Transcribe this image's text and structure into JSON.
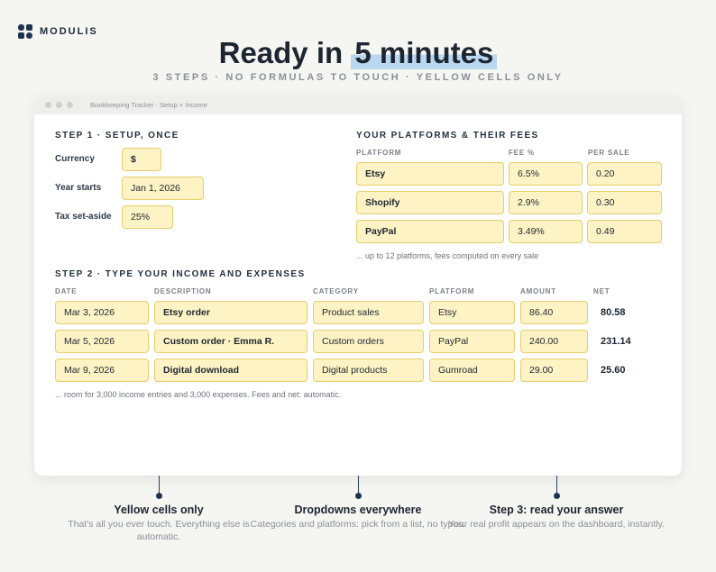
{
  "brand": {
    "name": "MODULIS"
  },
  "hero": {
    "title_pre": "Ready in ",
    "title_highlight": "5 minutes",
    "subtitle": "3 STEPS · NO FORMULAS TO TOUCH · YELLOW CELLS ONLY"
  },
  "window": {
    "title": "Bookkeeping Tracker · Setup + Income"
  },
  "setup": {
    "title": "STEP 1 · SETUP, ONCE",
    "rows": [
      {
        "label": "Currency",
        "value": "$"
      },
      {
        "label": "Year starts",
        "value": "Jan 1, 2026"
      },
      {
        "label": "Tax set-aside",
        "value": "25%"
      }
    ]
  },
  "platforms": {
    "title": "YOUR PLATFORMS & THEIR FEES",
    "headers": {
      "platform": "PLATFORM",
      "fee": "FEE %",
      "per_sale": "PER SALE"
    },
    "rows": [
      {
        "platform": "Etsy",
        "fee": "6.5%",
        "per_sale": "0.20"
      },
      {
        "platform": "Shopify",
        "fee": "2.9%",
        "per_sale": "0.30"
      },
      {
        "platform": "PayPal",
        "fee": "3.49%",
        "per_sale": "0.49"
      }
    ],
    "note": "... up to 12 platforms, fees computed on every sale"
  },
  "income": {
    "title": "STEP 2 · TYPE YOUR INCOME AND EXPENSES",
    "headers": {
      "date": "DATE",
      "description": "DESCRIPTION",
      "category": "CATEGORY",
      "platform": "PLATFORM",
      "amount": "AMOUNT",
      "net": "NET"
    },
    "rows": [
      {
        "date": "Mar 3, 2026",
        "description": "Etsy order",
        "category": "Product sales",
        "platform": "Etsy",
        "amount": "86.40",
        "net": "80.58"
      },
      {
        "date": "Mar 5, 2026",
        "description": "Custom order · Emma R.",
        "category": "Custom orders",
        "platform": "PayPal",
        "amount": "240.00",
        "net": "231.14"
      },
      {
        "date": "Mar 9, 2026",
        "description": "Digital download",
        "category": "Digital products",
        "platform": "Gumroad",
        "amount": "29.00",
        "net": "25.60"
      }
    ],
    "note": "... room for 3,000 income entries and 3,000 expenses. Fees and net: automatic."
  },
  "callouts": [
    {
      "title": "Yellow cells only",
      "desc": "That's all you ever touch. Everything else is automatic."
    },
    {
      "title": "Dropdowns everywhere",
      "desc": "Categories and platforms: pick from a list, no typos."
    },
    {
      "title": "Step 3: read your answer",
      "desc": "Your real profit appears on the dashboard, instantly."
    }
  ],
  "colors": {
    "yellow_cell": "#fdf3c4",
    "yellow_border": "#e7cd6c",
    "navy": "#1e3350",
    "highlight": "#b9d8f0"
  }
}
